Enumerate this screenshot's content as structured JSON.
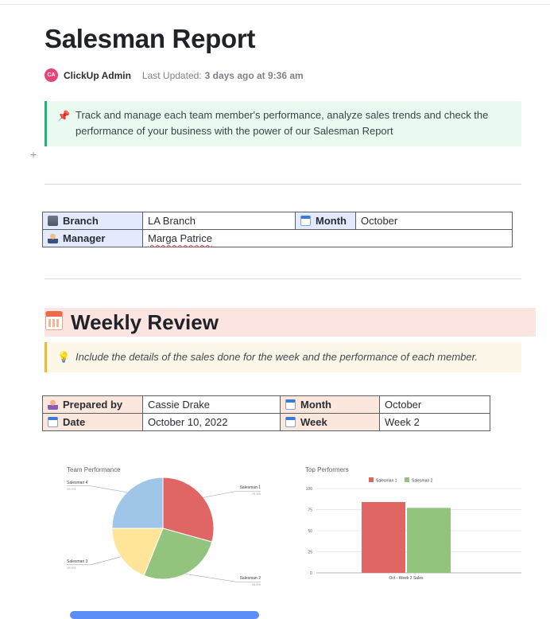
{
  "doc": {
    "title": "Salesman Report",
    "avatar_initials": "CA",
    "author": "ClickUp Admin",
    "updated_label": "Last Updated:",
    "updated_value": "3 days ago at 9:36 am"
  },
  "intro_callout": {
    "icon": "pushpin-icon",
    "text": "Track and manage each team member's performance, analyze sales trends and check the performance of your business with the power of our Salesman Report"
  },
  "branch_table": {
    "branch_label": "Branch",
    "branch_value": "LA Branch",
    "month_label": "Month",
    "month_value": "October",
    "manager_label": "Manager",
    "manager_value": "Marga Patrice"
  },
  "weekly": {
    "title": "Weekly Review",
    "callout_icon": "lightbulb-icon",
    "callout_text": "Include the details of the sales done for the week and the performance of each member.",
    "prepared_label": "Prepared by",
    "prepared_value": "Cassie Drake",
    "month_label": "Month",
    "month_value": "October",
    "date_label": "Date",
    "date_value": "October 10, 2022",
    "week_label": "Week",
    "week_value": "Week 2"
  },
  "chart_data": [
    {
      "type": "pie",
      "title": "Team Performance",
      "categories": [
        "Salesman 1",
        "Salesman 2",
        "Salesman 3",
        "Salesman 4"
      ],
      "values": [
        29.3,
        26.8,
        18.9,
        25.0
      ],
      "percent_labels": [
        "29.3%",
        "26.8%",
        "18.9%",
        "25.0%"
      ],
      "colors": [
        "#e06666",
        "#93c47d",
        "#ffe599",
        "#9fc5e8"
      ]
    },
    {
      "type": "bar",
      "title": "Top Performers",
      "categories": [
        "Oct - Week 2 Sales"
      ],
      "series": [
        {
          "name": "Salesman 1",
          "values": [
            84
          ],
          "color": "#e06666"
        },
        {
          "name": "Salesman 2",
          "values": [
            77
          ],
          "color": "#93c47d"
        }
      ],
      "ylim": [
        0,
        100
      ],
      "yticks": [
        "100",
        "75",
        "50",
        "25",
        "0"
      ],
      "legend": "top",
      "grid": true
    }
  ]
}
